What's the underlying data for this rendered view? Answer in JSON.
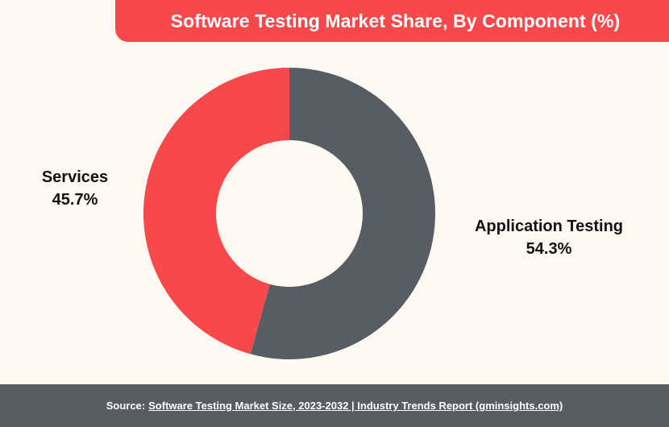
{
  "chart_data": {
    "type": "pie",
    "title": "Software Testing Market Share, By Component (%)",
    "donut": true,
    "slices": [
      {
        "label": "Application Testing",
        "value": 54.3,
        "value_label": "54.3%",
        "color": "#575d63"
      },
      {
        "label": "Services",
        "value": 45.7,
        "value_label": "45.7%",
        "color": "#f7494c"
      }
    ]
  },
  "footer": {
    "source_prefix": "Source:",
    "source_link": "Software Testing Market Size, 2023-2032 | Industry Trends Report (gminsights.com)"
  }
}
